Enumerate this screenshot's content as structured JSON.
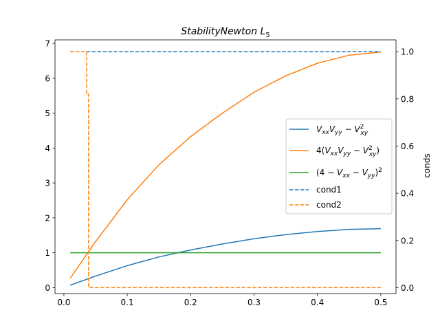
{
  "chart_data": {
    "type": "line",
    "title": "StabilityNewton L5",
    "title_parts": {
      "main": "StabilityNewton L",
      "subscript": "5"
    },
    "xlabel": "",
    "ylabel": "",
    "y2label": "conds",
    "xlim": [
      -0.014,
      0.524
    ],
    "ylim": [
      -0.17,
      7.1
    ],
    "y2lim": [
      -0.025,
      1.05
    ],
    "x_ticks": [
      "0.0",
      "0.1",
      "0.2",
      "0.3",
      "0.4",
      "0.5"
    ],
    "y_ticks": [
      "0",
      "1",
      "2",
      "3",
      "4",
      "5",
      "6",
      "7"
    ],
    "y2_ticks": [
      "0.0",
      "0.2",
      "0.4",
      "0.6",
      "0.8",
      "1.0"
    ],
    "grid": false,
    "legend_position": "center-right",
    "series": [
      {
        "name": "VxxVyy − Vxy²",
        "color": "#1f77b4",
        "style": "solid",
        "axis": "left",
        "x": [
          0.01,
          0.05,
          0.1,
          0.15,
          0.2,
          0.25,
          0.3,
          0.35,
          0.4,
          0.45,
          0.5
        ],
        "y": [
          0.07,
          0.33,
          0.63,
          0.88,
          1.08,
          1.25,
          1.4,
          1.52,
          1.61,
          1.67,
          1.69
        ]
      },
      {
        "name": "4(VxxVyy − Vxy²)",
        "color": "#ff7f0e",
        "style": "solid",
        "axis": "left",
        "x": [
          0.01,
          0.05,
          0.1,
          0.15,
          0.2,
          0.25,
          0.3,
          0.35,
          0.4,
          0.45,
          0.5
        ],
        "y": [
          0.27,
          1.32,
          2.52,
          3.52,
          4.33,
          5.0,
          5.6,
          6.07,
          6.43,
          6.66,
          6.75
        ]
      },
      {
        "name": "(4 − Vxx − Vyy)²",
        "color": "#2ca02c",
        "style": "solid",
        "axis": "left",
        "x": [
          0.01,
          0.5
        ],
        "y": [
          1.0,
          1.0
        ]
      },
      {
        "name": "cond1",
        "color": "#1f77b4",
        "style": "dashed",
        "axis": "right",
        "x": [
          0.01,
          0.5
        ],
        "y": [
          1.0,
          1.0
        ]
      },
      {
        "name": "cond2",
        "color": "#ff7f0e",
        "style": "dashed",
        "axis": "right",
        "x": [
          0.01,
          0.036,
          0.036,
          0.039,
          0.039,
          0.5
        ],
        "y": [
          1.0,
          1.0,
          0.82,
          0.82,
          0.0,
          0.0
        ]
      }
    ]
  }
}
